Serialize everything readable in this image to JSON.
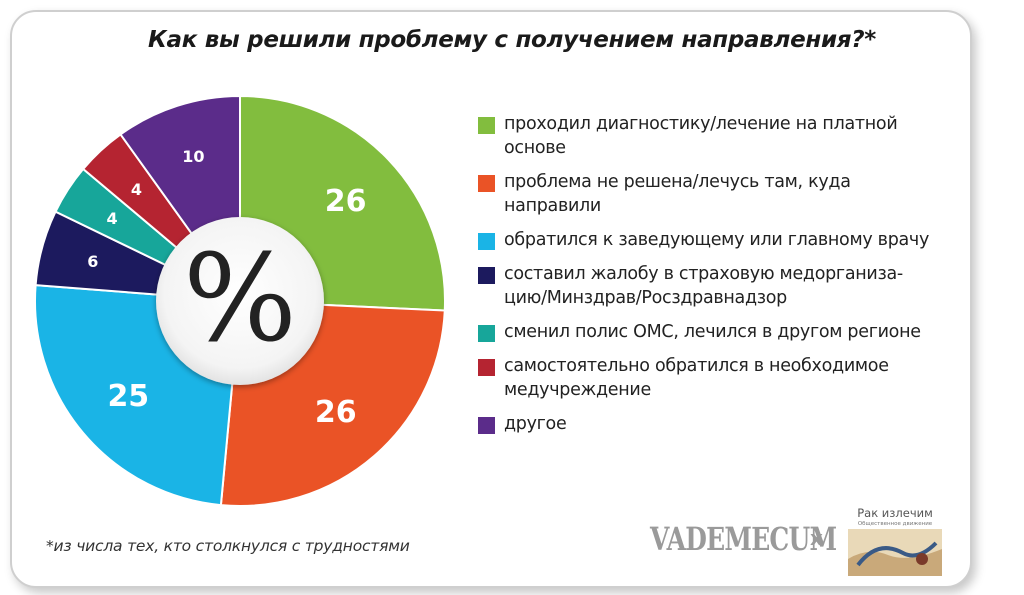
{
  "chart_data": {
    "type": "pie",
    "title": "Как вы решили проблему с получением направления?*",
    "center_label": "%",
    "footnote": "*из числа тех, кто столкнулся с трудностями",
    "categories": [
      "проходил диагностику/лечение на платной основе",
      "проблема не решена/лечусь там, куда направили",
      "обратился к заведующему или главному врачу",
      "составил жалобу в страховую медорганиза-цию/Минздрав/Росздравнадзор",
      "сменил полис ОМС, лечился в другом регионе",
      "самостоятельно обратился в необходимое медучреждение",
      "другое"
    ],
    "values": [
      26,
      26,
      25,
      6,
      4,
      4,
      10
    ],
    "colors": [
      "#82bd3e",
      "#ea5326",
      "#1ab4e6",
      "#1c1a5e",
      "#17a69a",
      "#b52431",
      "#5b2c8a"
    ],
    "legend_placement": "right"
  },
  "legend": [
    {
      "line1": "проходил диагностику/лечение на платной",
      "line2": "основе"
    },
    {
      "line1": "проблема не решена/лечусь там, куда",
      "line2": "направили"
    },
    {
      "line1": "обратился к заведующему или главному врачу",
      "line2": ""
    },
    {
      "line1": "составил жалобу в страховую медорганиза-",
      "line2": "цию/Минздрав/Росздравнадзор"
    },
    {
      "line1": "сменил полис ОМС, лечился в другом регионе",
      "line2": ""
    },
    {
      "line1": "самостоятельно обратился в необходимое",
      "line2": "медучреждение"
    },
    {
      "line1": "другое",
      "line2": ""
    }
  ],
  "branding": {
    "vademecum": "VADEMECUM",
    "separator": "x",
    "partner_name": "Рак излечим",
    "partner_sub": "Общественное движение"
  }
}
